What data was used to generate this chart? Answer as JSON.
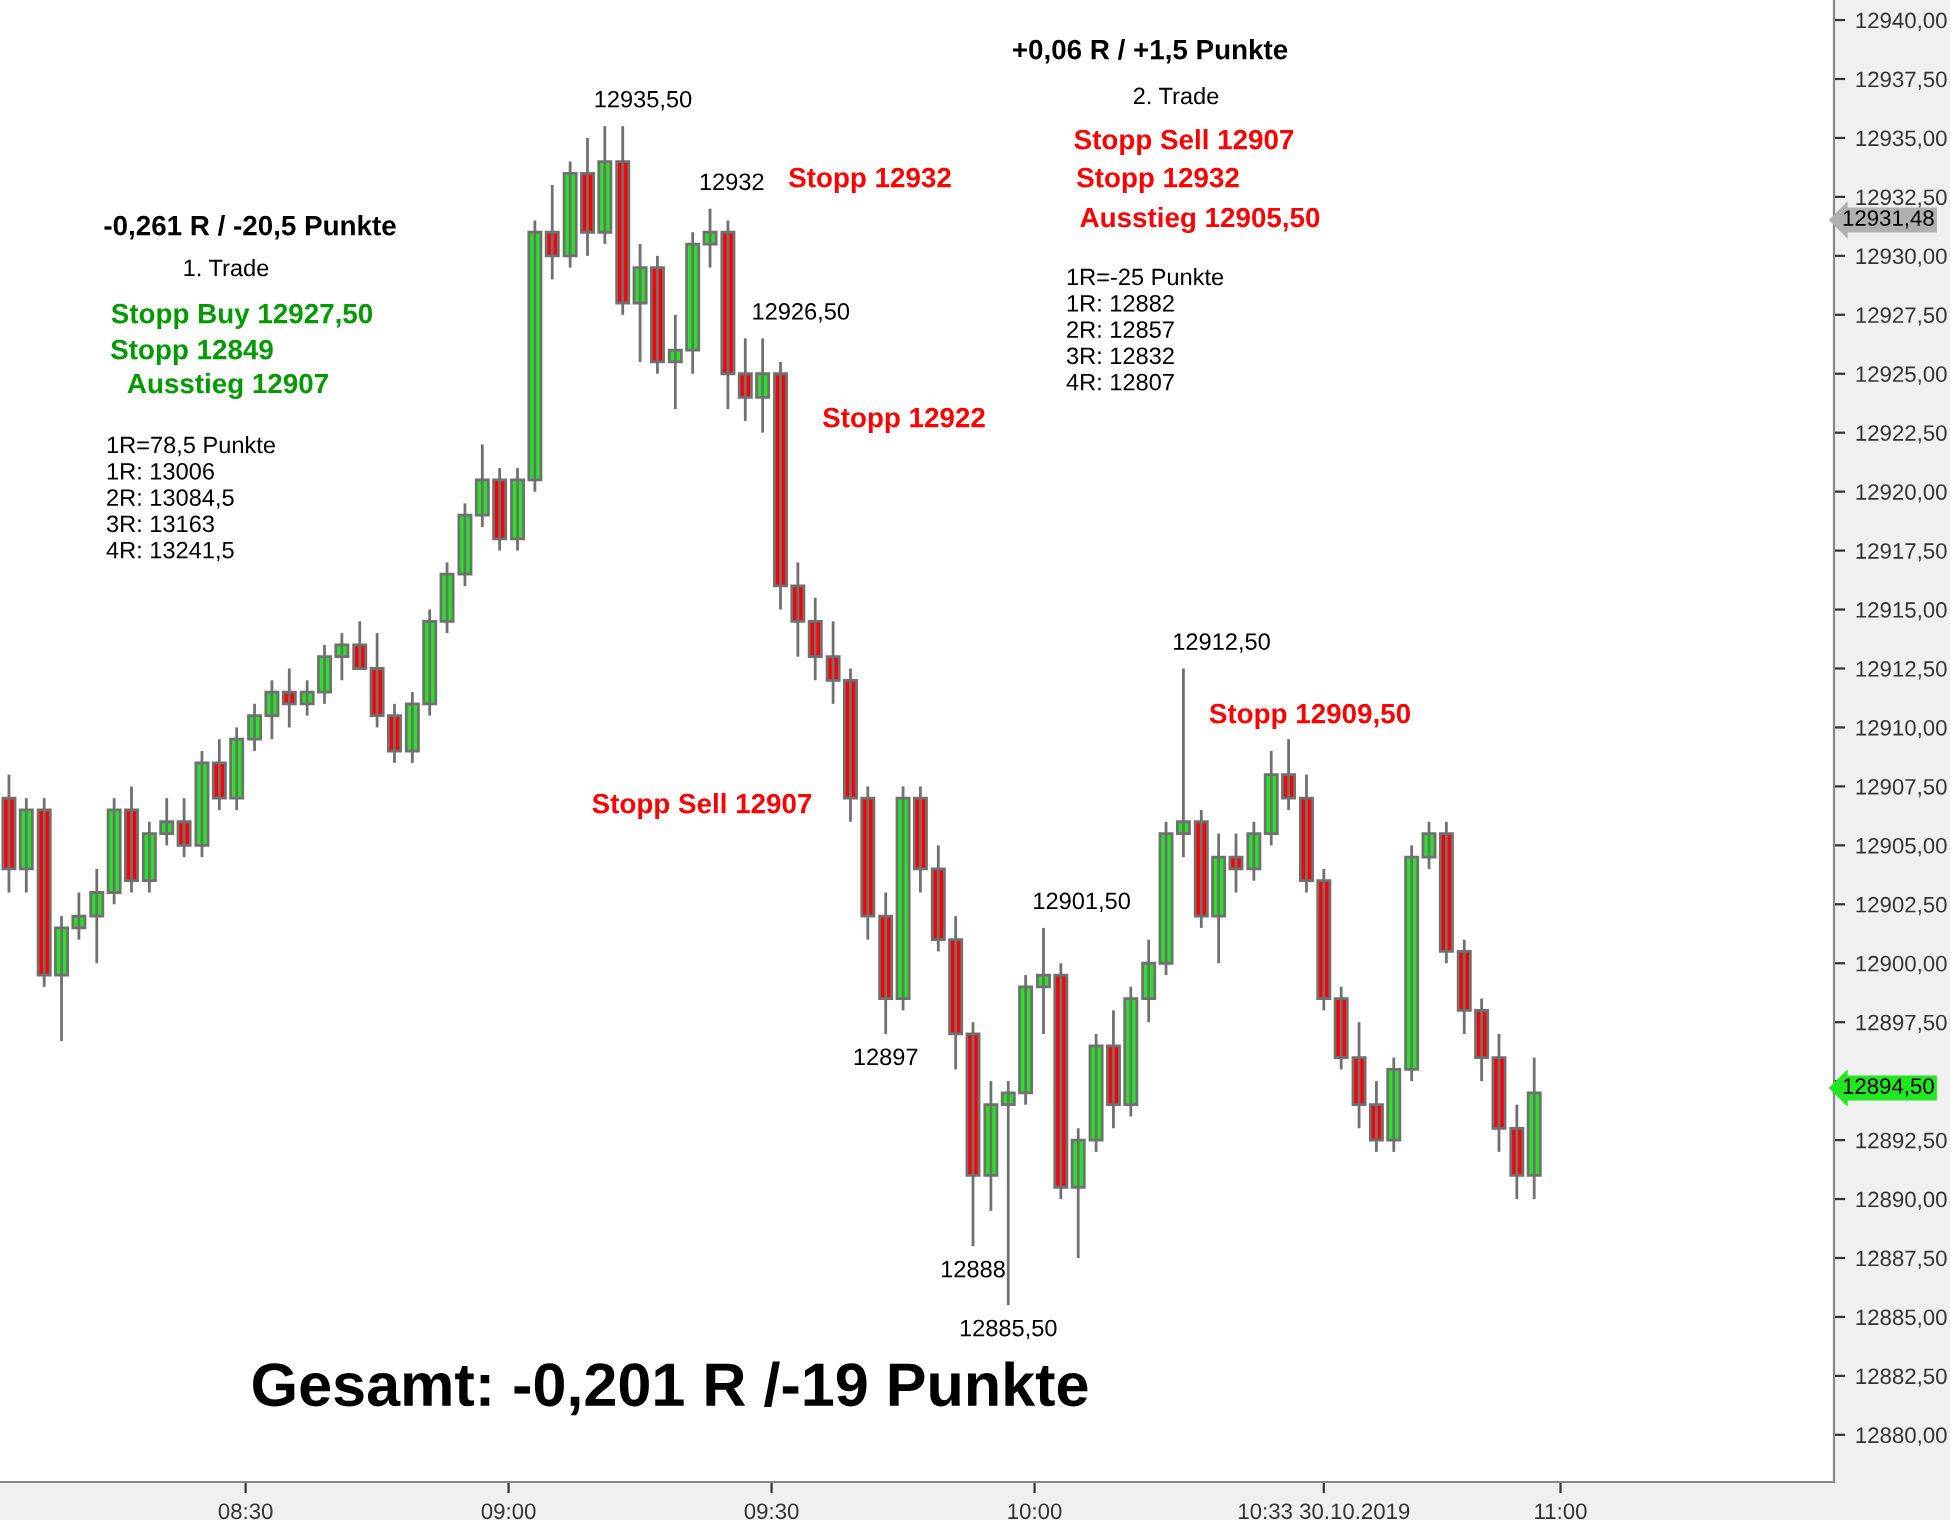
{
  "chart_data": {
    "type": "candlestick",
    "x": [
      8.05,
      8.083,
      8.117,
      8.15,
      8.183,
      8.217,
      8.25,
      8.283,
      8.317,
      8.35,
      8.383,
      8.417,
      8.45,
      8.483,
      8.517,
      8.55,
      8.583,
      8.617,
      8.65,
      8.683,
      8.717,
      8.75,
      8.783,
      8.817,
      8.85,
      8.883,
      8.917,
      8.95,
      8.983,
      9.017,
      9.05,
      9.083,
      9.117,
      9.15,
      9.183,
      9.217,
      9.25,
      9.283,
      9.317,
      9.35,
      9.383,
      9.417,
      9.45,
      9.483,
      9.517,
      9.55,
      9.583,
      9.617,
      9.65,
      9.683,
      9.717,
      9.75,
      9.783,
      9.817,
      9.85,
      9.883,
      9.917,
      9.95,
      9.983,
      10.017,
      10.05,
      10.083,
      10.117,
      10.15,
      10.183,
      10.217,
      10.25,
      10.283,
      10.317,
      10.35,
      10.383,
      10.417,
      10.45,
      10.483,
      10.517,
      10.55,
      10.583,
      10.617,
      10.65,
      10.683,
      10.717,
      10.75,
      10.783,
      10.817,
      10.85,
      10.883,
      10.917,
      10.95
    ],
    "ohlc": [
      [
        12907,
        12908,
        12903,
        12904
      ],
      [
        12904,
        12907,
        12903,
        12906.5
      ],
      [
        12906.5,
        12907,
        12899,
        12899.5
      ],
      [
        12899.5,
        12902,
        12896.7,
        12901.5
      ],
      [
        12901.5,
        12903,
        12901,
        12902
      ],
      [
        12902,
        12904,
        12900,
        12903
      ],
      [
        12903,
        12907,
        12902.5,
        12906.5
      ],
      [
        12906.5,
        12907.5,
        12903,
        12903.5
      ],
      [
        12903.5,
        12906,
        12903,
        12905.5
      ],
      [
        12905.5,
        12907,
        12905,
        12906
      ],
      [
        12906,
        12907,
        12904.5,
        12905
      ],
      [
        12905,
        12909,
        12904.5,
        12908.5
      ],
      [
        12908.5,
        12909.5,
        12906.5,
        12907
      ],
      [
        12907,
        12910,
        12906.5,
        12909.5
      ],
      [
        12909.5,
        12911,
        12909,
        12910.5
      ],
      [
        12910.5,
        12912,
        12909.5,
        12911.5
      ],
      [
        12911.5,
        12912.5,
        12910,
        12911
      ],
      [
        12911,
        12912,
        12910.5,
        12911.5
      ],
      [
        12911.5,
        12913.5,
        12911,
        12913
      ],
      [
        12913,
        12914,
        12912,
        12913.5
      ],
      [
        12913.5,
        12914.5,
        12912.5,
        12912.5
      ],
      [
        12912.5,
        12914,
        12910,
        12910.5
      ],
      [
        12910.5,
        12911,
        12908.5,
        12909
      ],
      [
        12909,
        12911.5,
        12908.5,
        12911
      ],
      [
        12911,
        12915,
        12910.5,
        12914.5
      ],
      [
        12914.5,
        12917,
        12914,
        12916.5
      ],
      [
        12916.5,
        12919.5,
        12916,
        12919
      ],
      [
        12919,
        12922,
        12918.5,
        12920.5
      ],
      [
        12920.5,
        12921,
        12917.5,
        12918
      ],
      [
        12918,
        12921,
        12917.5,
        12920.5
      ],
      [
        12920.5,
        12931.5,
        12920,
        12931
      ],
      [
        12931,
        12933,
        12929,
        12930
      ],
      [
        12930,
        12934,
        12929.5,
        12933.5
      ],
      [
        12933.5,
        12935,
        12930,
        12931
      ],
      [
        12931,
        12935.5,
        12930.5,
        12934
      ],
      [
        12934,
        12935.5,
        12927.5,
        12928
      ],
      [
        12928,
        12930.5,
        12925.5,
        12929.5
      ],
      [
        12929.5,
        12930,
        12925,
        12925.5
      ],
      [
        12925.5,
        12927.5,
        12923.5,
        12926
      ],
      [
        12926,
        12931,
        12925,
        12930.5
      ],
      [
        12930.5,
        12932,
        12929.5,
        12931
      ],
      [
        12931,
        12931.5,
        12923.5,
        12925
      ],
      [
        12925,
        12926.5,
        12923,
        12924
      ],
      [
        12924,
        12926.5,
        12922.5,
        12925
      ],
      [
        12925,
        12925.5,
        12915,
        12916
      ],
      [
        12916,
        12917,
        12913,
        12914.5
      ],
      [
        12914.5,
        12915.5,
        12912,
        12913
      ],
      [
        12913,
        12914.5,
        12911,
        12912
      ],
      [
        12912,
        12912.5,
        12906,
        12907
      ],
      [
        12907,
        12907.5,
        12901,
        12902
      ],
      [
        12902,
        12903,
        12897,
        12898.5
      ],
      [
        12898.5,
        12907.5,
        12898,
        12907
      ],
      [
        12907,
        12907.5,
        12903,
        12904
      ],
      [
        12904,
        12905,
        12900.5,
        12901
      ],
      [
        12901,
        12902,
        12895.5,
        12897
      ],
      [
        12897,
        12897.5,
        12888,
        12891
      ],
      [
        12891,
        12895,
        12889.5,
        12894
      ],
      [
        12894,
        12895,
        12885.5,
        12894.5
      ],
      [
        12894.5,
        12899.5,
        12894,
        12899
      ],
      [
        12899,
        12901.5,
        12897,
        12899.5
      ],
      [
        12899.5,
        12900,
        12890,
        12890.5
      ],
      [
        12890.5,
        12893,
        12887.5,
        12892.5
      ],
      [
        12892.5,
        12897,
        12892,
        12896.5
      ],
      [
        12896.5,
        12898,
        12893,
        12894
      ],
      [
        12894,
        12899,
        12893.5,
        12898.5
      ],
      [
        12898.5,
        12901,
        12897.5,
        12900
      ],
      [
        12900,
        12906,
        12899.5,
        12905.5
      ],
      [
        12905.5,
        12912.5,
        12904.5,
        12906
      ],
      [
        12906,
        12906.5,
        12901.5,
        12902
      ],
      [
        12902,
        12905.5,
        12900,
        12904.5
      ],
      [
        12904.5,
        12905.5,
        12903,
        12904
      ],
      [
        12904,
        12906,
        12903.5,
        12905.5
      ],
      [
        12905.5,
        12909,
        12905,
        12908
      ],
      [
        12908,
        12909.5,
        12906.5,
        12907
      ],
      [
        12907,
        12908,
        12903,
        12903.5
      ],
      [
        12903.5,
        12904,
        12898,
        12898.5
      ],
      [
        12898.5,
        12899,
        12895.5,
        12896
      ],
      [
        12896,
        12897.5,
        12893,
        12894
      ],
      [
        12894,
        12895,
        12892,
        12892.5
      ],
      [
        12892.5,
        12896,
        12892,
        12895.5
      ],
      [
        12895.5,
        12905,
        12895,
        12904.5
      ],
      [
        12904.5,
        12906,
        12904,
        12905.5
      ],
      [
        12905.5,
        12906,
        12900,
        12900.5
      ],
      [
        12900.5,
        12901,
        12897,
        12898
      ],
      [
        12898,
        12898.5,
        12895,
        12896
      ],
      [
        12896,
        12897,
        12892,
        12893
      ],
      [
        12893,
        12894,
        12890,
        12891
      ],
      [
        12891,
        12896,
        12890,
        12894.5
      ]
    ],
    "colors": [
      "#ff0000",
      "#22e622",
      "#ff0000",
      "#22e622",
      "#22e622",
      "#22e622",
      "#22e622",
      "#ff0000",
      "#22e622",
      "#22e622",
      "#ff0000",
      "#22e622",
      "#ff0000",
      "#22e622",
      "#22e622",
      "#22e622",
      "#ff0000",
      "#22e622",
      "#22e622",
      "#22e622",
      "#ff0000",
      "#ff0000",
      "#ff0000",
      "#22e622",
      "#22e622",
      "#22e622",
      "#22e622",
      "#22e622",
      "#ff0000",
      "#22e622",
      "#22e622",
      "#ff0000",
      "#22e622",
      "#ff0000",
      "#22e622",
      "#ff0000",
      "#22e622",
      "#ff0000",
      "#22e622",
      "#22e622",
      "#22e622",
      "#ff0000",
      "#ff0000",
      "#22e622",
      "#ff0000",
      "#ff0000",
      "#ff0000",
      "#ff0000",
      "#ff0000",
      "#ff0000",
      "#ff0000",
      "#22e622",
      "#ff0000",
      "#ff0000",
      "#ff0000",
      "#ff0000",
      "#22e622",
      "#22e622",
      "#22e622",
      "#22e622",
      "#ff0000",
      "#22e622",
      "#22e622",
      "#ff0000",
      "#22e622",
      "#22e622",
      "#22e622",
      "#22e622",
      "#ff0000",
      "#22e622",
      "#ff0000",
      "#22e622",
      "#22e622",
      "#ff0000",
      "#ff0000",
      "#ff0000",
      "#ff0000",
      "#ff0000",
      "#ff0000",
      "#22e622",
      "#22e622",
      "#22e622",
      "#ff0000",
      "#ff0000",
      "#ff0000",
      "#ff0000",
      "#ff0000",
      "#22e622"
    ],
    "xlim": [
      8.033,
      11.52
    ],
    "xticks": [
      {
        "value": 8.5,
        "label": "08:30"
      },
      {
        "value": 9,
        "label": "09:00"
      },
      {
        "value": 9.5,
        "label": "09:30"
      },
      {
        "value": 10,
        "label": "10:00"
      },
      {
        "value": 10.55,
        "label": "10:33 30.10.2019"
      },
      {
        "value": 11,
        "label": "11:00"
      }
    ],
    "ylim": [
      12878,
      12940.85
    ],
    "yticks": [
      {
        "value": 12880,
        "label": "12880,00"
      },
      {
        "value": 12882.5,
        "label": "12882,50"
      },
      {
        "value": 12885,
        "label": "12885,00"
      },
      {
        "value": 12887.5,
        "label": "12887,50"
      },
      {
        "value": 12890,
        "label": "12890,00"
      },
      {
        "value": 12892.5,
        "label": "12892,50"
      },
      {
        "value": 12895,
        "label": null
      },
      {
        "value": 12897.5,
        "label": "12897,50"
      },
      {
        "value": 12900,
        "label": "12900,00"
      },
      {
        "value": 12902.5,
        "label": "12902,50"
      },
      {
        "value": 12905,
        "label": "12905,00"
      },
      {
        "value": 12907.5,
        "label": "12907,50"
      },
      {
        "value": 12910,
        "label": "12910,00"
      },
      {
        "value": 12912.5,
        "label": "12912,50"
      },
      {
        "value": 12915,
        "label": "12915,00"
      },
      {
        "value": 12917.5,
        "label": "12917,50"
      },
      {
        "value": 12920,
        "label": "12920,00"
      },
      {
        "value": 12922.5,
        "label": "12922,50"
      },
      {
        "value": 12925,
        "label": "12925,00"
      },
      {
        "value": 12927.5,
        "label": "12927,50"
      },
      {
        "value": 12930,
        "label": "12930,00"
      },
      {
        "value": 12932.5,
        "label": "12932,50"
      },
      {
        "value": 12935,
        "label": "12935,00"
      },
      {
        "value": 12937.5,
        "label": "12937,50"
      },
      {
        "value": 12940,
        "label": "12940,00"
      }
    ],
    "annotations": [
      "+0,06 R / +1,5 Punkte",
      "2. Trade",
      "Stopp Sell 12907",
      "Stopp 12932",
      "Ausstieg 12905,50",
      "1R=-25 Punkte\n1R: 12882\n2R: 12857\n3R: 12832\n4R: 12807",
      "-0,261 R / -20,5 Punkte",
      "1. Trade",
      "Stopp Buy 12927,50",
      "Stopp 12849",
      "Ausstieg 12907",
      "1R=78,5 Punkte\n1R: 13006\n2R: 13084,5\n3R: 13163\n4R: 13241,5",
      "Stopp 12932",
      "Stopp 12922",
      "Stopp Sell 12907",
      "Stopp 12909,50",
      "Gesamt: -0,201 R /-19 Punkte",
      {
        "text": "12935,50",
        "x": 9.183,
        "y": 12935.5
      },
      {
        "text": "12932",
        "x": 9.383,
        "y": 12932
      },
      {
        "text": "12926,50",
        "x": 9.483,
        "y": 12926.5
      },
      {
        "text": "12897",
        "x": 9.717,
        "y": 12897
      },
      {
        "text": "12888",
        "x": 9.883,
        "y": 12888
      },
      {
        "text": "12885,50",
        "x": 9.95,
        "y": 12885.5
      },
      {
        "text": "12901,50",
        "x": 10.017,
        "y": 12901.5
      },
      {
        "text": "12912,50",
        "x": 10.283,
        "y": 12912.5
      },
      "12931,48",
      "12894,50"
    ]
  }
}
